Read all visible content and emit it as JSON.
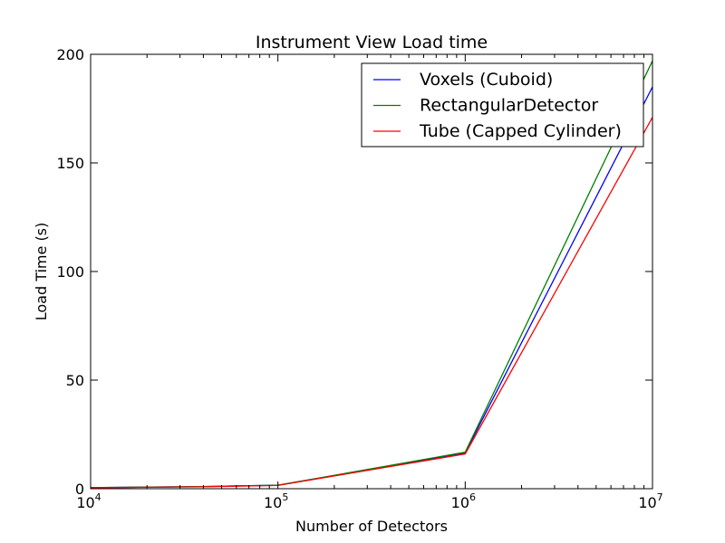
{
  "chart_data": {
    "type": "line",
    "title": "Instrument View Load time",
    "xlabel": "Number of Detectors",
    "ylabel": "Load Time (s)",
    "xscale": "log",
    "xlim": [
      10000,
      10000000
    ],
    "ylim": [
      0,
      200
    ],
    "x_ticks": [
      {
        "base": "10",
        "exp": "4",
        "value": 10000
      },
      {
        "base": "10",
        "exp": "5",
        "value": 100000
      },
      {
        "base": "10",
        "exp": "6",
        "value": 1000000
      },
      {
        "base": "10",
        "exp": "7",
        "value": 10000000
      }
    ],
    "y_ticks": [
      {
        "label": "0",
        "value": 0
      },
      {
        "label": "50",
        "value": 50
      },
      {
        "label": "100",
        "value": 100
      },
      {
        "label": "150",
        "value": 150
      },
      {
        "label": "200",
        "value": 200
      }
    ],
    "grid": false,
    "legend_position": "top-right",
    "series": [
      {
        "name": "Voxels (Cuboid)",
        "color": "#0000ff",
        "x": [
          10000,
          40000,
          100000,
          1000000,
          10000000
        ],
        "y": [
          0.5,
          1.0,
          1.6,
          16.5,
          185
        ]
      },
      {
        "name": "RectangularDetector",
        "color": "#008000",
        "x": [
          10000,
          40000,
          100000,
          1000000,
          10000000
        ],
        "y": [
          0.5,
          1.0,
          1.6,
          16.8,
          197
        ]
      },
      {
        "name": "Tube (Capped Cylinder)",
        "color": "#ff0000",
        "x": [
          10000,
          40000,
          100000,
          1000000,
          10000000
        ],
        "y": [
          0.4,
          0.9,
          1.5,
          16.0,
          171
        ]
      }
    ]
  }
}
